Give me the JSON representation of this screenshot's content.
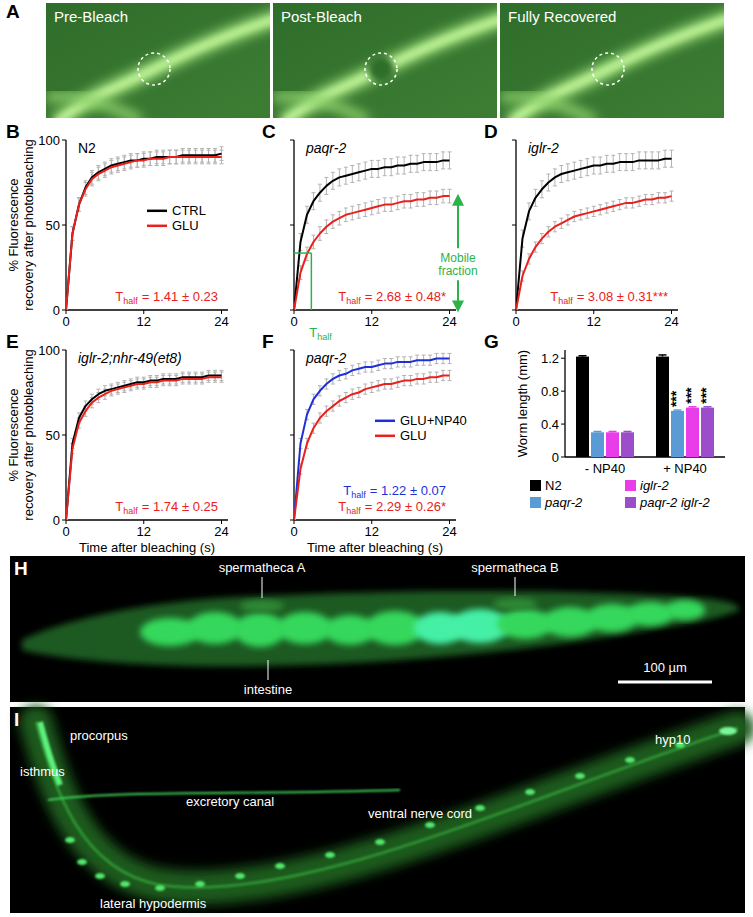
{
  "images": [
    {
      "letter": "A",
      "type": "micrograph",
      "frames": [
        "Pre-Bleach",
        "Post-Bleach",
        "Fully Recovered"
      ]
    },
    {
      "letter": "H",
      "type": "micrograph",
      "labels": [
        "spermatheca A",
        "spermatheca B",
        "intestine"
      ],
      "scale_bar": "100 µm"
    },
    {
      "letter": "I",
      "type": "micrograph",
      "labels": [
        "procorpus",
        "isthmus",
        "excretory canal",
        "ventral nerve cord",
        "lateral hypodermis",
        "hyp10"
      ]
    }
  ],
  "chart_data": [
    {
      "letter": "B",
      "type": "line",
      "title": "N2",
      "y_label": [
        "% Fluorescence",
        "recovery after photobleaching"
      ],
      "xlim": [
        0,
        25
      ],
      "xticks": [
        0,
        12,
        24
      ],
      "ylim": [
        0,
        100
      ],
      "yticks": [
        0,
        50,
        100
      ],
      "x": [
        0,
        1,
        2,
        3,
        4,
        5,
        6,
        7,
        8,
        9,
        10,
        11,
        12,
        13,
        14,
        15,
        16,
        17,
        18,
        19,
        20,
        21,
        22,
        23,
        24
      ],
      "legend": "right",
      "series": [
        {
          "name": "CTRL",
          "color": "#000000",
          "values": [
            0,
            45,
            62,
            72,
            78,
            81,
            83,
            85,
            86,
            87,
            88,
            88,
            89,
            89,
            90,
            90,
            90,
            90,
            91,
            91,
            91,
            91,
            91,
            91,
            92
          ],
          "errors": [
            0,
            4,
            4,
            4,
            4,
            4,
            4,
            4,
            4,
            4,
            4,
            4,
            4,
            4,
            4,
            4,
            4,
            4,
            4,
            4,
            4,
            4,
            4,
            4,
            4
          ]
        },
        {
          "name": "GLU",
          "color": "#e8211d",
          "values": [
            0,
            45,
            62,
            71,
            77,
            80,
            82,
            84,
            85,
            86,
            87,
            88,
            88,
            89,
            89,
            89,
            90,
            90,
            90,
            90,
            90,
            90,
            90,
            90,
            90
          ],
          "errors": [
            0,
            4,
            4,
            4,
            4,
            4,
            4,
            4,
            4,
            4,
            4,
            4,
            4,
            4,
            4,
            4,
            4,
            4,
            4,
            4,
            4,
            4,
            4,
            4,
            4
          ]
        }
      ],
      "annotations": [
        {
          "label": "T",
          "sub": "half",
          "text": "= 1.41 ± 0.23",
          "color": "#e8211d"
        }
      ]
    },
    {
      "letter": "C",
      "type": "line",
      "title": "paqr-2",
      "xlim": [
        0,
        25
      ],
      "xticks": [
        0,
        12,
        24
      ],
      "ylim": [
        0,
        100
      ],
      "yticks": [
        0,
        50,
        100
      ],
      "tick_labels": "x",
      "x": [
        0,
        1,
        2,
        3,
        4,
        5,
        6,
        7,
        8,
        9,
        10,
        11,
        12,
        13,
        14,
        15,
        16,
        17,
        18,
        19,
        20,
        21,
        22,
        23,
        24
      ],
      "series": [
        {
          "color": "#000000",
          "values": [
            0,
            40,
            56,
            64,
            69,
            73,
            76,
            78,
            79,
            80,
            81,
            82,
            83,
            83,
            84,
            84,
            85,
            85,
            86,
            86,
            87,
            87,
            87,
            88,
            88
          ],
          "errors": [
            0,
            5,
            5,
            5,
            5,
            5,
            5,
            5,
            5,
            5,
            5,
            5,
            5,
            5,
            5,
            5,
            5,
            5,
            5,
            5,
            5,
            5,
            5,
            5,
            5
          ]
        },
        {
          "color": "#e8211d",
          "values": [
            0,
            22,
            33,
            40,
            45,
            49,
            52,
            54,
            56,
            57,
            58,
            59,
            60,
            61,
            62,
            62,
            63,
            64,
            64,
            65,
            65,
            66,
            66,
            67,
            67
          ],
          "errors": [
            0,
            4,
            4,
            4,
            4,
            4,
            4,
            4,
            4,
            4,
            4,
            4,
            4,
            4,
            4,
            4,
            4,
            4,
            4,
            4,
            4,
            4,
            4,
            4,
            4
          ]
        }
      ],
      "guide": {
        "x": 2.68,
        "y": 33.5,
        "label": "T",
        "sub": "half",
        "color": "#2bb34a"
      },
      "mobile_fraction": {
        "value": 67,
        "label": [
          "Mobile",
          "fraction"
        ],
        "color": "#2bb34a"
      },
      "annotations": [
        {
          "label": "T",
          "sub": "half",
          "text": "= 2.68 ± 0.48*",
          "color": "#e8211d"
        }
      ]
    },
    {
      "letter": "D",
      "type": "line",
      "title": "iglr-2",
      "xlim": [
        0,
        25
      ],
      "xticks": [
        0,
        12,
        24
      ],
      "ylim": [
        0,
        100
      ],
      "yticks": [
        0,
        50,
        100
      ],
      "tick_labels": "x",
      "x": [
        0,
        1,
        2,
        3,
        4,
        5,
        6,
        7,
        8,
        9,
        10,
        11,
        12,
        13,
        14,
        15,
        16,
        17,
        18,
        19,
        20,
        21,
        22,
        23,
        24
      ],
      "series": [
        {
          "color": "#000000",
          "values": [
            0,
            42,
            58,
            66,
            71,
            75,
            78,
            80,
            81,
            82,
            83,
            84,
            85,
            85,
            86,
            86,
            87,
            87,
            87,
            88,
            88,
            88,
            88,
            89,
            89
          ],
          "errors": [
            0,
            5,
            5,
            5,
            5,
            5,
            5,
            5,
            5,
            5,
            5,
            5,
            5,
            5,
            5,
            5,
            5,
            5,
            5,
            5,
            5,
            5,
            5,
            5,
            5
          ]
        },
        {
          "color": "#e8211d",
          "values": [
            0,
            20,
            30,
            37,
            42,
            46,
            49,
            51,
            53,
            55,
            56,
            57,
            58,
            59,
            60,
            61,
            62,
            63,
            63,
            64,
            65,
            65,
            66,
            66,
            67
          ],
          "errors": [
            0,
            3,
            3,
            3,
            3,
            3,
            3,
            3,
            3,
            3,
            3,
            3,
            3,
            3,
            3,
            3,
            3,
            3,
            3,
            3,
            3,
            3,
            3,
            3,
            3
          ]
        }
      ],
      "annotations": [
        {
          "label": "T",
          "sub": "half",
          "text": "= 3.08 ± 0.31***",
          "color": "#e8211d"
        }
      ]
    },
    {
      "letter": "E",
      "type": "line",
      "title": "iglr-2;nhr-49(et8)",
      "y_label": [
        "% Fluorescence",
        "recovery after photobleaching"
      ],
      "x_label": "Time after bleaching (s)",
      "xlim": [
        0,
        25
      ],
      "xticks": [
        0,
        12,
        24
      ],
      "ylim": [
        0,
        100
      ],
      "yticks": [
        0,
        50,
        100
      ],
      "x": [
        0,
        1,
        2,
        3,
        4,
        5,
        6,
        7,
        8,
        9,
        10,
        11,
        12,
        13,
        14,
        15,
        16,
        17,
        18,
        19,
        20,
        21,
        22,
        23,
        24
      ],
      "series": [
        {
          "color": "#000000",
          "values": [
            0,
            45,
            60,
            67,
            71,
            74,
            76,
            77,
            78,
            79,
            80,
            81,
            81,
            82,
            82,
            83,
            83,
            83,
            84,
            84,
            84,
            84,
            85,
            85,
            85
          ],
          "errors": [
            0,
            3,
            3,
            3,
            3,
            3,
            3,
            3,
            3,
            3,
            3,
            3,
            3,
            3,
            3,
            3,
            3,
            3,
            3,
            3,
            3,
            3,
            3,
            3,
            3
          ]
        },
        {
          "color": "#e8211d",
          "values": [
            0,
            42,
            57,
            64,
            69,
            72,
            74,
            76,
            77,
            78,
            79,
            80,
            80,
            81,
            81,
            82,
            82,
            82,
            83,
            83,
            83,
            83,
            84,
            84,
            84
          ],
          "errors": [
            0,
            3,
            3,
            3,
            3,
            3,
            3,
            3,
            3,
            3,
            3,
            3,
            3,
            3,
            3,
            3,
            3,
            3,
            3,
            3,
            3,
            3,
            3,
            3,
            3
          ]
        }
      ],
      "annotations": [
        {
          "label": "T",
          "sub": "half",
          "text": "= 1.74 ± 0.25",
          "color": "#e8211d"
        }
      ]
    },
    {
      "letter": "F",
      "type": "line",
      "title": "paqr-2",
      "x_label": "Time after bleaching (s)",
      "xlim": [
        0,
        25
      ],
      "xticks": [
        0,
        12,
        24
      ],
      "ylim": [
        0,
        100
      ],
      "yticks": [
        0,
        50,
        100
      ],
      "tick_labels": "x",
      "x": [
        0,
        1,
        2,
        3,
        4,
        5,
        6,
        7,
        8,
        9,
        10,
        11,
        12,
        13,
        14,
        15,
        16,
        17,
        18,
        19,
        20,
        21,
        22,
        23,
        24
      ],
      "legend": "right",
      "series": [
        {
          "name": "GLU+NP40",
          "color": "#1f2fd8",
          "values": [
            0,
            45,
            62,
            71,
            76,
            80,
            83,
            85,
            86,
            88,
            89,
            90,
            90,
            91,
            92,
            92,
            93,
            93,
            93,
            94,
            94,
            94,
            95,
            95,
            95
          ],
          "errors": [
            0,
            3,
            3,
            3,
            3,
            3,
            3,
            3,
            3,
            3,
            3,
            3,
            3,
            3,
            3,
            3,
            3,
            3,
            3,
            3,
            3,
            3,
            3,
            3,
            3
          ]
        },
        {
          "name": "GLU",
          "color": "#e8211d",
          "values": [
            0,
            30,
            45,
            54,
            60,
            64,
            67,
            70,
            72,
            74,
            75,
            77,
            78,
            79,
            80,
            80,
            81,
            82,
            82,
            83,
            83,
            84,
            84,
            85,
            85
          ],
          "errors": [
            0,
            3,
            3,
            3,
            3,
            3,
            3,
            3,
            3,
            3,
            3,
            3,
            3,
            3,
            3,
            3,
            3,
            3,
            3,
            3,
            3,
            3,
            3,
            3,
            3
          ]
        }
      ],
      "annotations": [
        {
          "label": "T",
          "sub": "half",
          "text": "= 1.22 ± 0.07",
          "color": "#1f2fd8"
        },
        {
          "label": "T",
          "sub": "half",
          "text": "= 2.29 ± 0.26*",
          "color": "#e8211d"
        }
      ]
    },
    {
      "letter": "G",
      "type": "bar",
      "y_label": "Worm length (mm)",
      "categories": [
        "- NP40",
        "+ NP40"
      ],
      "ylim": [
        0,
        1.3
      ],
      "yticks": [
        0,
        0.4,
        0.8,
        1.2
      ],
      "legend": "bottom",
      "series": [
        {
          "name": "N2",
          "color": "#000000",
          "values": [
            1.22,
            1.22
          ],
          "errors": [
            0.01,
            0.02
          ]
        },
        {
          "name": "paqr-2",
          "color": "#5b9bd5",
          "values": [
            0.3,
            0.56
          ],
          "errors": [
            0.01,
            0.01
          ]
        },
        {
          "name": "iglr-2",
          "color": "#e93de9",
          "values": [
            0.3,
            0.6
          ],
          "errors": [
            0.01,
            0.01
          ]
        },
        {
          "name": "paqr-2 iglr-2",
          "color": "#9b4dca",
          "values": [
            0.3,
            0.6
          ],
          "errors": [
            0.01,
            0.01
          ]
        }
      ],
      "annotations": [
        {
          "category": 1,
          "series": 1,
          "text": "***"
        },
        {
          "category": 1,
          "series": 2,
          "text": "***"
        },
        {
          "category": 1,
          "series": 3,
          "text": "***"
        }
      ]
    }
  ]
}
